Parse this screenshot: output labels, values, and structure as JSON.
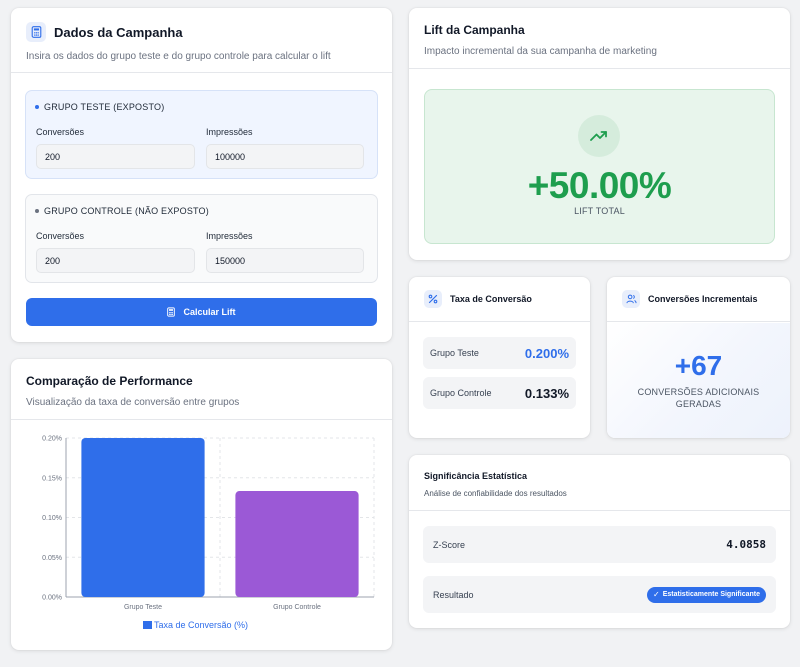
{
  "campaign_data": {
    "title": "Dados da Campanha",
    "subtitle": "Insira os dados do grupo teste e do grupo controle para calcular o lift",
    "test_group": {
      "title": "GRUPO TESTE (EXPOSTO)",
      "conversions_label": "Conversões",
      "conversions_value": "200",
      "impressions_label": "Impressões",
      "impressions_value": "100000"
    },
    "control_group": {
      "title": "GRUPO CONTROLE (NÃO EXPOSTO)",
      "conversions_label": "Conversões",
      "conversions_value": "200",
      "impressions_label": "Impressões",
      "impressions_value": "150000"
    },
    "calc_button": "Calcular Lift"
  },
  "performance": {
    "title": "Comparação de Performance",
    "subtitle": "Visualização da taxa de conversão entre grupos"
  },
  "chart_data": {
    "type": "bar",
    "categories": [
      "Grupo Teste",
      "Grupo Controle"
    ],
    "values": [
      0.2,
      0.1333
    ],
    "series_name": "Taxa de Conversão (%)",
    "colors": [
      "#2f6eea",
      "#9b59d6"
    ],
    "ylim": [
      0,
      0.2
    ],
    "yticks": [
      "0.00%",
      "0.05%",
      "0.10%",
      "0.15%",
      "0.20%"
    ],
    "grid": true,
    "legend": "bottom"
  },
  "lift": {
    "title": "Lift da Campanha",
    "subtitle": "Impacto incremental da sua campanha de marketing",
    "value": "+50.00%",
    "label": "LIFT TOTAL"
  },
  "conversion_rate": {
    "title": "Taxa de Conversão",
    "test_label": "Grupo Teste",
    "test_value": "0.200%",
    "control_label": "Grupo Controle",
    "control_value": "0.133%"
  },
  "incremental": {
    "title": "Conversões Incrementais",
    "value": "+67",
    "label_line1": "CONVERSÕES ADICIONAIS",
    "label_line2": "GERADAS"
  },
  "significance": {
    "title": "Significância Estatística",
    "subtitle": "Análise de confiabilidade dos resultados",
    "zscore_label": "Z-Score",
    "zscore_value": "4.0858",
    "result_label": "Resultado",
    "result_badge": "Estatisticamente Significante"
  },
  "colors": {
    "accent": "#2f6eea",
    "purple": "#9b59d6",
    "green": "#1e9e4e",
    "green_bg": "#e8f5ec"
  },
  "icons": [
    "calculator-icon",
    "trending-up-icon",
    "percent-icon",
    "users-icon",
    "check-icon"
  ]
}
